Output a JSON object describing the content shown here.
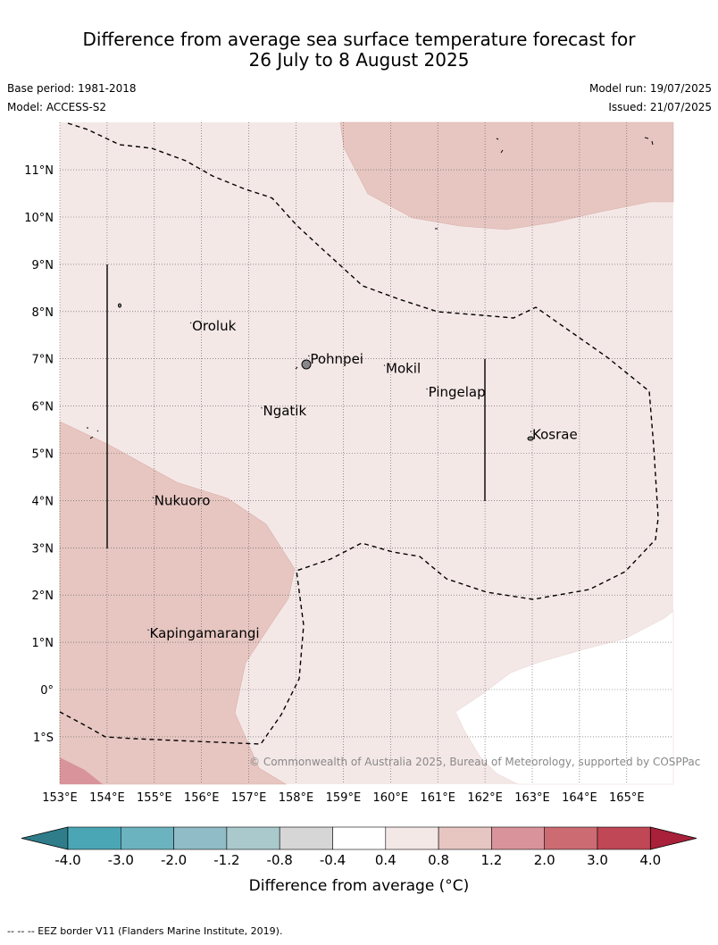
{
  "title": {
    "line1": "Difference from average sea surface temperature forecast for",
    "line2": "26 July to 8 August 2025"
  },
  "meta": {
    "base_period": "Base period: 1981-2018",
    "model": "Model: ACCESS-S2",
    "model_run": "Model run: 19/07/2025",
    "issued": "Issued: 21/07/2025"
  },
  "credit": "© Commonwealth of Australia 2025, Bureau of Meteorology, supported by COSPPac",
  "footer": "--  --  -- EEZ border V11 (Flanders Marine Institute, 2019).",
  "map": {
    "lon_range": [
      153,
      166
    ],
    "lat_range": [
      -2,
      12
    ],
    "lon_ticks": [
      "153°E",
      "154°E",
      "155°E",
      "156°E",
      "157°E",
      "158°E",
      "159°E",
      "160°E",
      "161°E",
      "162°E",
      "163°E",
      "164°E",
      "165°E"
    ],
    "lat_ticks": [
      "11°N",
      "10°N",
      "9°N",
      "8°N",
      "7°N",
      "6°N",
      "5°N",
      "4°N",
      "3°N",
      "2°N",
      "1°N",
      "0°",
      "1°S"
    ],
    "places": [
      {
        "name": "Oroluk",
        "lon": 155.8,
        "lat": 7.6
      },
      {
        "name": "Pohnpei",
        "lon": 158.3,
        "lat": 6.9
      },
      {
        "name": "Mokil",
        "lon": 159.9,
        "lat": 6.7
      },
      {
        "name": "Pingelap",
        "lon": 160.8,
        "lat": 6.2
      },
      {
        "name": "Ngatik",
        "lon": 157.3,
        "lat": 5.8
      },
      {
        "name": "Kosrae",
        "lon": 163.0,
        "lat": 5.3
      },
      {
        "name": "Nukuoro",
        "lon": 155.0,
        "lat": 3.9
      },
      {
        "name": "Kapingamarangi",
        "lon": 154.9,
        "lat": 1.1
      }
    ]
  },
  "colorbar": {
    "labels": [
      "-4.0",
      "-3.0",
      "-2.0",
      "-1.2",
      "-0.8",
      "-0.4",
      "0.4",
      "0.8",
      "1.2",
      "2.0",
      "3.0",
      "4.0"
    ],
    "colors": [
      "#2f7d8a",
      "#4aa6b5",
      "#6cb3c0",
      "#8fbcc6",
      "#a9c9cc",
      "#d6d6d6",
      "#ffffff",
      "#f4e8e7",
      "#e7c6c1",
      "#d8949a",
      "#cc6b72",
      "#c04755",
      "#a8203a"
    ],
    "title": "Difference from average (°C)"
  }
}
